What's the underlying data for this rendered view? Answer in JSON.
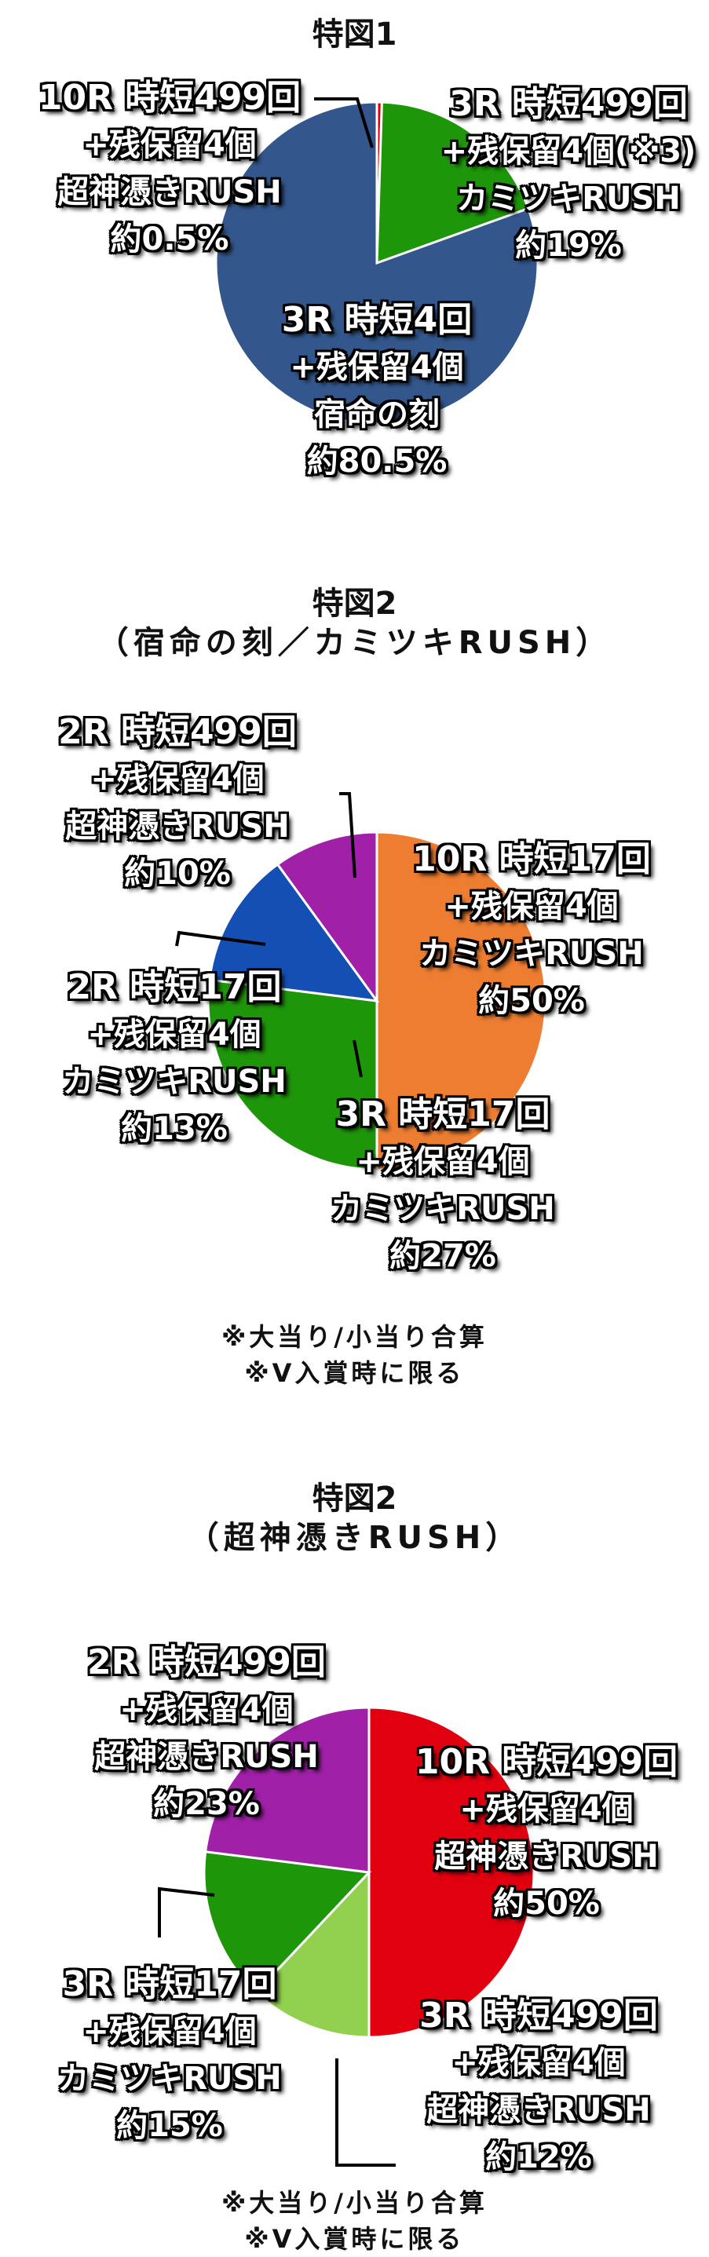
{
  "chart_data": [
    {
      "type": "pie",
      "title": "特図1",
      "subtitle": "",
      "slices": [
        {
          "value": 0.5,
          "color": "#E0000F",
          "lines": [
            "10R 時短499回",
            "+残保留4個",
            "超神憑きRUSH",
            "約0.5%"
          ]
        },
        {
          "value": 19,
          "color": "#1E960A",
          "lines": [
            "3R 時短499回",
            "+残保留4個(※3)",
            "カミツキRUSH",
            "約19%"
          ]
        },
        {
          "value": 80.5,
          "color": "#33578C",
          "lines": [
            "3R 時短4回",
            "+残保留4個",
            "宿命の刻",
            "約80.5%"
          ]
        }
      ],
      "notes": []
    },
    {
      "type": "pie",
      "title": "特図2",
      "subtitle": "（宿命の刻／カミツキRUSH）",
      "slices": [
        {
          "value": 50,
          "color": "#ED7D31",
          "lines": [
            "10R 時短17回",
            "+残保留4個",
            "カミツキRUSH",
            "約50%"
          ]
        },
        {
          "value": 27,
          "color": "#1E960A",
          "lines": [
            "3R 時短17回",
            "+残保留4個",
            "カミツキRUSH",
            "約27%"
          ]
        },
        {
          "value": 13,
          "color": "#1450B4",
          "lines": [
            "2R 時短17回",
            "+残保留4個",
            "カミツキRUSH",
            "約13%"
          ]
        },
        {
          "value": 10,
          "color": "#A020A8",
          "lines": [
            "2R 時短499回",
            "+残保留4個",
            "超神憑きRUSH",
            "約10%"
          ]
        }
      ],
      "notes": [
        "※大当り/小当り合算",
        "※V入賞時に限る"
      ]
    },
    {
      "type": "pie",
      "title": "特図2",
      "subtitle": "（超神憑きRUSH）",
      "slices": [
        {
          "value": 50,
          "color": "#E0000F",
          "lines": [
            "10R 時短499回",
            "+残保留4個",
            "超神憑きRUSH",
            "約50%"
          ]
        },
        {
          "value": 12,
          "color": "#92D050",
          "lines": [
            "3R 時短499回",
            "+残保留4個",
            "超神憑きRUSH",
            "約12%"
          ]
        },
        {
          "value": 15,
          "color": "#1E960A",
          "lines": [
            "3R 時短17回",
            "+残保留4個",
            "カミツキRUSH",
            "約15%"
          ]
        },
        {
          "value": 23,
          "color": "#A020A8",
          "lines": [
            "2R 時短499回",
            "+残保留4個",
            "超神憑きRUSH",
            "約23%"
          ]
        }
      ],
      "notes": [
        "※大当り/小当り合算",
        "※V入賞時に限る"
      ]
    }
  ]
}
